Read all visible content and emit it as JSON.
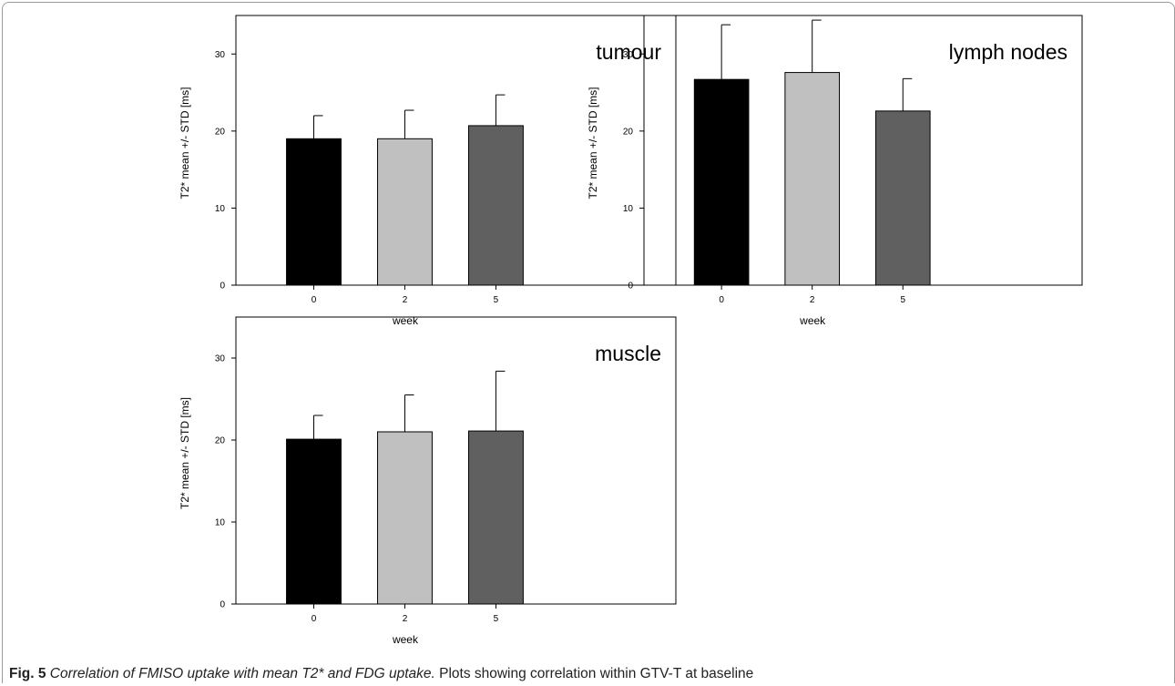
{
  "figure": {
    "caption_label": "Fig. 5",
    "caption_title": "Correlation of FMISO uptake with mean T2* and FDG uptake.",
    "caption_text": "Plots showing correlation within GTV-T at baseline"
  },
  "chart_data": [
    {
      "type": "bar",
      "title": "tumour",
      "xlabel": "week",
      "ylabel": "T2* mean +/- STD [ms]",
      "categories": [
        "0",
        "2",
        "5"
      ],
      "values": [
        19.0,
        19.0,
        20.7
      ],
      "errors": [
        3.0,
        3.7,
        4.0
      ],
      "colors": [
        "#000000",
        "#c0c0c0",
        "#606060"
      ],
      "ylim": [
        0,
        35
      ],
      "yticks": [
        0,
        10,
        20,
        30
      ]
    },
    {
      "type": "bar",
      "title": "lymph nodes",
      "xlabel": "week",
      "ylabel": "T2* mean +/- STD [ms]",
      "categories": [
        "0",
        "2",
        "5"
      ],
      "values": [
        26.7,
        27.6,
        22.6
      ],
      "errors": [
        7.1,
        6.8,
        4.2
      ],
      "colors": [
        "#000000",
        "#c0c0c0",
        "#606060"
      ],
      "ylim": [
        0,
        35
      ],
      "yticks": [
        0,
        10,
        20,
        30
      ]
    },
    {
      "type": "bar",
      "title": "muscle",
      "xlabel": "week",
      "ylabel": "T2* mean +/- STD [ms]",
      "categories": [
        "0",
        "2",
        "5"
      ],
      "values": [
        20.1,
        21.0,
        21.1
      ],
      "errors": [
        2.9,
        4.5,
        7.3
      ],
      "colors": [
        "#000000",
        "#c0c0c0",
        "#606060"
      ],
      "ylim": [
        0,
        35
      ],
      "yticks": [
        0,
        10,
        20,
        30
      ]
    }
  ]
}
